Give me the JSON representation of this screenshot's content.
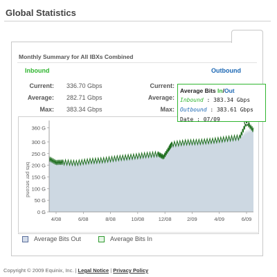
{
  "page_title": "Global Statistics",
  "summary": {
    "title": "Monthly Summary for All IBXs Combined",
    "inbound_label": "Inbound",
    "outbound_label": "Outbound",
    "current_label": "Current:",
    "average_label": "Average:",
    "max_label": "Max:",
    "inbound": {
      "current": "336.70 Gbps",
      "average": "282.71 Gbps",
      "max": "383.34 Gbps"
    }
  },
  "tooltip": {
    "title_prefix": "Average Bits ",
    "title_in": "In",
    "title_sep": "/",
    "title_out": "Out",
    "inbound_label": "Inbound",
    "inbound_value": " : 383.34 Gbps",
    "outbound_label": "Outbound",
    "outbound_value": " : 383.61 Gbps",
    "date_text": "Date : 07/09"
  },
  "legend": {
    "out_label": "Average Bits Out",
    "in_label": "Average Bits In"
  },
  "colors": {
    "inbound": "#2fb52f",
    "outbound": "#1a66b3",
    "area_fill": "#cdd8e2",
    "line": "#1e6e1e"
  },
  "chart_data": {
    "type": "area",
    "ylabel": "bits per second",
    "y_ticks": [
      "0 G",
      "50 G",
      "100 G",
      "150 G",
      "200 G",
      "250 G",
      "300 G",
      "360 G"
    ],
    "y_tick_values": [
      0,
      50,
      100,
      150,
      200,
      250,
      300,
      360
    ],
    "ylim": [
      0,
      380
    ],
    "x_ticks": [
      "4/08",
      "6/08",
      "8/08",
      "10/08",
      "12/08",
      "2/09",
      "4/09",
      "6/09"
    ],
    "series": [
      {
        "name": "Average Bits Out",
        "style": "area",
        "x": [
          0,
          0.5,
          1,
          2,
          3,
          4,
          5,
          6,
          7,
          8,
          8.4,
          8.8,
          9,
          10,
          11,
          12,
          13,
          14,
          14.5,
          15
        ],
        "values": [
          230,
          215,
          215,
          212,
          220,
          225,
          232,
          238,
          245,
          250,
          240,
          275,
          292,
          300,
          302,
          308,
          316,
          322,
          345,
          355
        ]
      },
      {
        "name": "Average Bits In",
        "style": "line",
        "x": [
          0,
          0.5,
          1,
          2,
          3,
          4,
          5,
          6,
          7,
          8,
          8.4,
          8.8,
          9,
          10,
          11,
          12,
          13,
          14,
          14.5,
          15
        ],
        "values": [
          228,
          212,
          213,
          210,
          218,
          222,
          230,
          236,
          243,
          248,
          235,
          272,
          290,
          298,
          300,
          305,
          313,
          320,
          383,
          350
        ]
      }
    ]
  }
}
